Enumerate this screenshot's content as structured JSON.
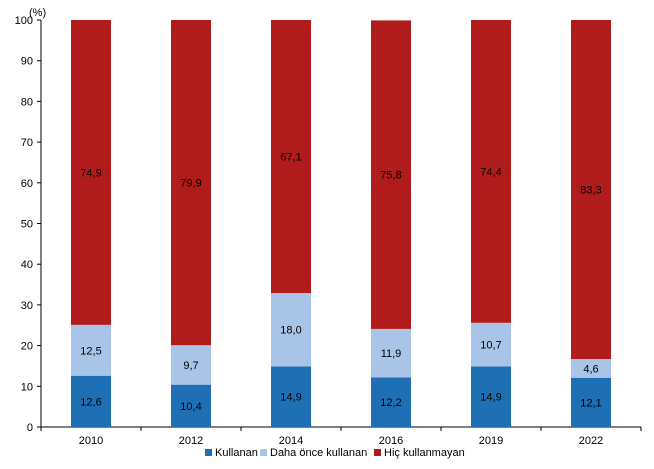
{
  "chart_data": {
    "type": "bar",
    "stacked": true,
    "title": "",
    "xlabel": "",
    "ylabel": "",
    "unit_label": "(%)",
    "ylim": [
      0,
      100
    ],
    "yticks": [
      0,
      10,
      20,
      30,
      40,
      50,
      60,
      70,
      80,
      90,
      100
    ],
    "grid": false,
    "legend_position": "bottom",
    "categories": [
      "2010",
      "2012",
      "2014",
      "2016",
      "2019",
      "2022"
    ],
    "series": [
      {
        "name": "Kullanan",
        "color": "#1f6fb5",
        "values": [
          12.6,
          10.4,
          14.9,
          12.2,
          14.9,
          12.1
        ],
        "labels": [
          "12,6",
          "10,4",
          "14,9",
          "12,2",
          "14,9",
          "12,1"
        ]
      },
      {
        "name": "Daha önce kullanan",
        "color": "#a8c4e6",
        "values": [
          12.5,
          9.7,
          18.0,
          11.9,
          10.7,
          4.6
        ],
        "labels": [
          "12,5",
          "9,7",
          "18,0",
          "11,9",
          "10,7",
          "4,6"
        ]
      },
      {
        "name": "Hiç kullanmayan",
        "color": "#b01b1b",
        "values": [
          74.9,
          79.9,
          67.1,
          75.8,
          74.4,
          83.3
        ],
        "labels": [
          "74,9",
          "79,9",
          "67,1",
          "75,8",
          "74,4",
          "83,3"
        ]
      }
    ]
  }
}
